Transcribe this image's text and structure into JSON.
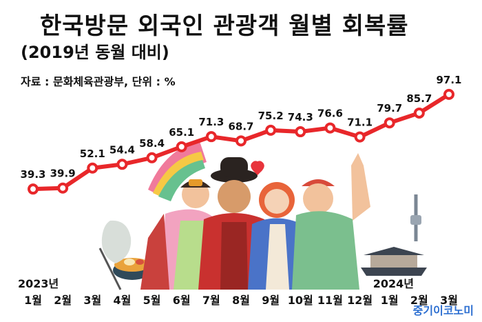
{
  "header": {
    "title": "한국방문 외국인 관광객 월별 회복률",
    "subtitle": "(2019년 동월 대비)",
    "source": "자료 : 문화체육관광부, 단위 : %"
  },
  "brand": "중기이코노미",
  "colors": {
    "line": "#e8272a",
    "marker_fill": "#ffffff",
    "brand": "#2d6fd1"
  },
  "chart_data": {
    "type": "line",
    "title": "한국방문 외국인 관광객 월별 회복률",
    "subtitle": "(2019년 동월 대비)",
    "unit": "%",
    "categories": [
      "1월",
      "2월",
      "3월",
      "4월",
      "5월",
      "6월",
      "7월",
      "8월",
      "9월",
      "10월",
      "11월",
      "12월",
      "1월",
      "2월",
      "3월"
    ],
    "year_labels": [
      {
        "label": "2023년",
        "at_index": 0
      },
      {
        "label": "2024년",
        "at_index": 12
      }
    ],
    "series": [
      {
        "values": [
          39.3,
          39.9,
          52.1,
          54.4,
          58.4,
          65.1,
          71.3,
          68.7,
          75.2,
          74.3,
          76.6,
          71.1,
          79.7,
          85.7,
          97.1
        ]
      }
    ],
    "ylim": [
      20,
      100
    ],
    "grid": false,
    "legend": "none"
  }
}
